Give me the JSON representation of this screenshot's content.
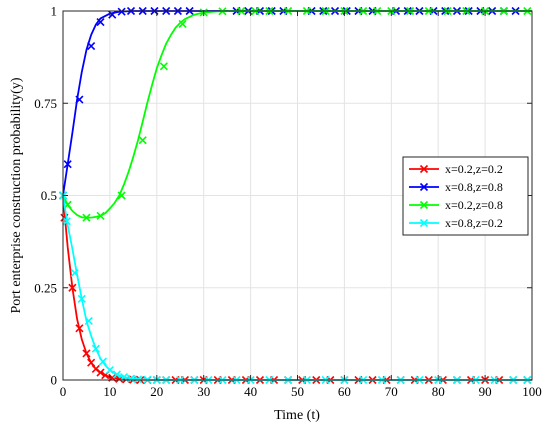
{
  "chart_data": {
    "type": "line",
    "title": "",
    "xlabel": "Time (t)",
    "ylabel": "Port enterprise construction probability(y)",
    "xlim": [
      0,
      100
    ],
    "ylim": [
      0,
      1
    ],
    "x_ticks": [
      0,
      10,
      20,
      30,
      40,
      50,
      60,
      70,
      80,
      90,
      100
    ],
    "y_ticks": [
      0,
      0.25,
      0.5,
      0.75,
      1
    ],
    "x_tick_labels": [
      "0",
      "10",
      "20",
      "30",
      "40",
      "50",
      "60",
      "70",
      "80",
      "90",
      "100"
    ],
    "y_tick_labels": [
      "0",
      "0.25",
      "0.5",
      "0.75",
      "1"
    ],
    "grid": true,
    "legend_position": "right",
    "marker": "x",
    "series": [
      {
        "name": "x=0.2,z=0.2",
        "color": "#ff0000",
        "points": [
          [
            0,
            0.5
          ],
          [
            0.5,
            0.43
          ],
          [
            1,
            0.36
          ],
          [
            2,
            0.25
          ],
          [
            3,
            0.165
          ],
          [
            4,
            0.11
          ],
          [
            5,
            0.072
          ],
          [
            6,
            0.047
          ],
          [
            7,
            0.03
          ],
          [
            8,
            0.02
          ],
          [
            9,
            0.013
          ],
          [
            10,
            0.008
          ],
          [
            12,
            0.003
          ],
          [
            15,
            0.001
          ],
          [
            20,
            0
          ],
          [
            30,
            0
          ],
          [
            40,
            0
          ],
          [
            50,
            0
          ],
          [
            60,
            0
          ],
          [
            70,
            0
          ],
          [
            80,
            0
          ],
          [
            90,
            0
          ],
          [
            100,
            0
          ]
        ],
        "markers": [
          [
            0,
            0.5
          ],
          [
            0.3,
            0.44
          ],
          [
            2,
            0.25
          ],
          [
            3.5,
            0.14
          ],
          [
            5,
            0.072
          ],
          [
            6,
            0.047
          ],
          [
            7,
            0.03
          ],
          [
            8,
            0.02
          ],
          [
            9,
            0.013
          ],
          [
            10.5,
            0.006
          ],
          [
            12,
            0.003
          ],
          [
            13.5,
            0.002
          ],
          [
            15,
            0.001
          ],
          [
            16.5,
            0
          ],
          [
            18,
            0
          ],
          [
            20,
            0
          ],
          [
            22,
            0
          ],
          [
            24,
            0
          ],
          [
            26,
            0
          ],
          [
            28,
            0
          ],
          [
            30,
            0
          ],
          [
            33,
            0
          ],
          [
            36,
            0
          ],
          [
            39,
            0
          ],
          [
            42,
            0
          ],
          [
            45,
            0
          ],
          [
            48,
            0
          ],
          [
            51,
            0
          ],
          [
            54,
            0
          ],
          [
            57,
            0
          ],
          [
            60,
            0
          ],
          [
            63,
            0
          ],
          [
            66,
            0
          ],
          [
            69,
            0
          ],
          [
            72,
            0
          ],
          [
            75,
            0
          ],
          [
            78,
            0
          ],
          [
            81,
            0
          ],
          [
            84,
            0
          ],
          [
            87,
            0
          ],
          [
            90,
            0
          ],
          [
            93,
            0
          ],
          [
            96,
            0
          ],
          [
            99,
            0
          ]
        ]
      },
      {
        "name": "x=0.8,z=0.8",
        "color": "#0000ff",
        "points": [
          [
            0,
            0.5
          ],
          [
            1,
            0.585
          ],
          [
            2,
            0.67
          ],
          [
            3,
            0.76
          ],
          [
            4,
            0.835
          ],
          [
            5,
            0.895
          ],
          [
            6,
            0.935
          ],
          [
            7,
            0.963
          ],
          [
            8,
            0.98
          ],
          [
            10,
            0.993
          ],
          [
            12,
            0.998
          ],
          [
            15,
            1
          ],
          [
            20,
            1
          ],
          [
            30,
            1
          ],
          [
            40,
            1
          ],
          [
            50,
            1
          ],
          [
            60,
            1
          ],
          [
            70,
            1
          ],
          [
            80,
            1
          ],
          [
            90,
            1
          ],
          [
            100,
            1
          ]
        ],
        "markers": [
          [
            0,
            0.5
          ],
          [
            1,
            0.585
          ],
          [
            3.5,
            0.76
          ],
          [
            6,
            0.905
          ],
          [
            8,
            0.97
          ],
          [
            10.5,
            0.99
          ],
          [
            12.5,
            0.998
          ],
          [
            14.5,
            1
          ],
          [
            17,
            1
          ],
          [
            19.5,
            1
          ],
          [
            22,
            1
          ],
          [
            24.5,
            1
          ],
          [
            27,
            1
          ],
          [
            37,
            1
          ],
          [
            39.5,
            1
          ],
          [
            42,
            1
          ],
          [
            44.5,
            1
          ],
          [
            47,
            1
          ],
          [
            53,
            1
          ],
          [
            55.5,
            1
          ],
          [
            58,
            1
          ],
          [
            60.5,
            1
          ],
          [
            63,
            1
          ],
          [
            66,
            1
          ],
          [
            71,
            1
          ],
          [
            73.5,
            1
          ],
          [
            76,
            1
          ],
          [
            79,
            1
          ],
          [
            81.5,
            1
          ],
          [
            84,
            1
          ],
          [
            86.5,
            1
          ],
          [
            89,
            1
          ],
          [
            91.5,
            1
          ],
          [
            94,
            1
          ],
          [
            96.5,
            1
          ]
        ]
      },
      {
        "name": "x=0.2,z=0.8",
        "color": "#00ff00",
        "points": [
          [
            0,
            0.5
          ],
          [
            1,
            0.475
          ],
          [
            2,
            0.458
          ],
          [
            3,
            0.447
          ],
          [
            4,
            0.441
          ],
          [
            5,
            0.44
          ],
          [
            6,
            0.44
          ],
          [
            7,
            0.442
          ],
          [
            8,
            0.445
          ],
          [
            9,
            0.452
          ],
          [
            10,
            0.465
          ],
          [
            11,
            0.48
          ],
          [
            12,
            0.5
          ],
          [
            13,
            0.53
          ],
          [
            14,
            0.565
          ],
          [
            15,
            0.605
          ],
          [
            16,
            0.65
          ],
          [
            17,
            0.7
          ],
          [
            18,
            0.752
          ],
          [
            19,
            0.8
          ],
          [
            20,
            0.845
          ],
          [
            21,
            0.88
          ],
          [
            22,
            0.912
          ],
          [
            23,
            0.935
          ],
          [
            24,
            0.955
          ],
          [
            25,
            0.968
          ],
          [
            26,
            0.978
          ],
          [
            28,
            0.99
          ],
          [
            30,
            0.996
          ],
          [
            33,
            0.999
          ],
          [
            36,
            1
          ],
          [
            40,
            1
          ],
          [
            50,
            1
          ],
          [
            60,
            1
          ],
          [
            70,
            1
          ],
          [
            80,
            1
          ],
          [
            90,
            1
          ],
          [
            100,
            1
          ]
        ],
        "markers": [
          [
            0,
            0.5
          ],
          [
            1,
            0.475
          ],
          [
            5,
            0.44
          ],
          [
            8,
            0.445
          ],
          [
            12.5,
            0.5
          ],
          [
            17,
            0.65
          ],
          [
            21.5,
            0.85
          ],
          [
            25.5,
            0.965
          ],
          [
            30,
            0.996
          ],
          [
            34,
            0.999
          ],
          [
            38,
            1
          ],
          [
            41,
            1
          ],
          [
            44,
            1
          ],
          [
            48,
            1
          ],
          [
            52,
            1
          ],
          [
            56,
            1
          ],
          [
            60,
            1
          ],
          [
            64,
            1
          ],
          [
            67,
            1
          ],
          [
            70,
            1
          ],
          [
            74,
            1
          ],
          [
            78,
            1
          ],
          [
            82,
            1
          ],
          [
            86,
            1
          ],
          [
            90,
            1
          ],
          [
            94,
            1
          ],
          [
            99,
            1
          ]
        ]
      },
      {
        "name": "x=0.8,z=0.2",
        "color": "#00ffff",
        "points": [
          [
            0,
            0.5
          ],
          [
            0.5,
            0.46
          ],
          [
            1,
            0.42
          ],
          [
            2,
            0.355
          ],
          [
            3,
            0.285
          ],
          [
            4,
            0.22
          ],
          [
            5,
            0.16
          ],
          [
            6,
            0.12
          ],
          [
            7,
            0.085
          ],
          [
            8,
            0.058
          ],
          [
            9,
            0.04
          ],
          [
            10,
            0.027
          ],
          [
            11,
            0.018
          ],
          [
            12,
            0.012
          ],
          [
            14,
            0.005
          ],
          [
            16,
            0.002
          ],
          [
            20,
            0
          ],
          [
            30,
            0
          ],
          [
            40,
            0
          ],
          [
            50,
            0
          ],
          [
            60,
            0
          ],
          [
            70,
            0
          ],
          [
            80,
            0
          ],
          [
            90,
            0
          ],
          [
            100,
            0
          ]
        ],
        "markers": [
          [
            0,
            0.5
          ],
          [
            0.8,
            0.43
          ],
          [
            2.5,
            0.29
          ],
          [
            4,
            0.22
          ],
          [
            5.5,
            0.16
          ],
          [
            7,
            0.085
          ],
          [
            8.5,
            0.05
          ],
          [
            10,
            0.027
          ],
          [
            11.5,
            0.015
          ],
          [
            13,
            0.008
          ],
          [
            14.5,
            0.004
          ],
          [
            16,
            0.002
          ],
          [
            18,
            0.001
          ],
          [
            20,
            0
          ],
          [
            22,
            0
          ],
          [
            25,
            0
          ],
          [
            28,
            0
          ],
          [
            31,
            0
          ],
          [
            34,
            0
          ],
          [
            37,
            0
          ],
          [
            40,
            0
          ],
          [
            44,
            0
          ],
          [
            48,
            0
          ],
          [
            52,
            0
          ],
          [
            56,
            0
          ],
          [
            60,
            0
          ],
          [
            64,
            0
          ],
          [
            68,
            0
          ],
          [
            72,
            0
          ],
          [
            76,
            0
          ],
          [
            80,
            0
          ],
          [
            84,
            0
          ],
          [
            88,
            0
          ],
          [
            92,
            0
          ],
          [
            96,
            0
          ],
          [
            99,
            0
          ]
        ]
      }
    ]
  }
}
